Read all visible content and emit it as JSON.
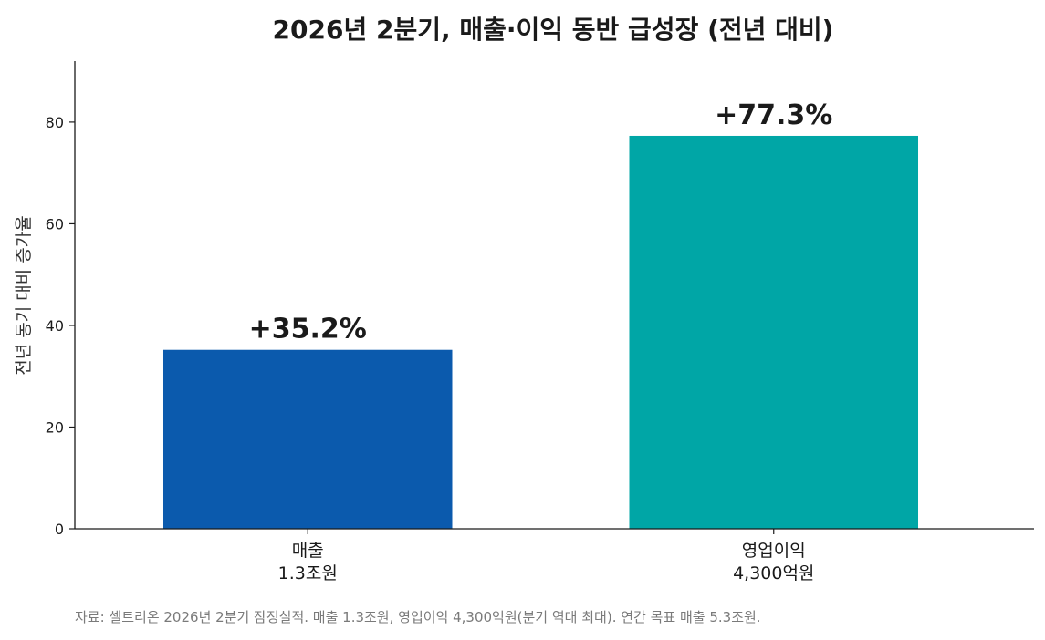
{
  "chart_data": {
    "type": "bar",
    "title": "2026년 2분기, 매출·이익 동반 급성장 (전년 대비)",
    "ylabel": "전년 동기 대비 증가율",
    "xlabel": "",
    "categories": [
      [
        "매출",
        "1.3조원"
      ],
      [
        "영업이익",
        "4,300억원"
      ]
    ],
    "values": [
      35.2,
      77.3
    ],
    "data_labels": [
      "+35.2%",
      "+77.3%"
    ],
    "colors": [
      "#0b5aad",
      "#00a6a6"
    ],
    "ylim": [
      0,
      92
    ],
    "yticks": [
      0,
      20,
      40,
      60,
      80
    ],
    "grid": false,
    "source_note": "자료: 셀트리온 2026년 2분기 잠정실적. 매출 1.3조원, 영업이익 4,300억원(분기 역대 최대). 연간 목표 매출 5.3조원."
  }
}
